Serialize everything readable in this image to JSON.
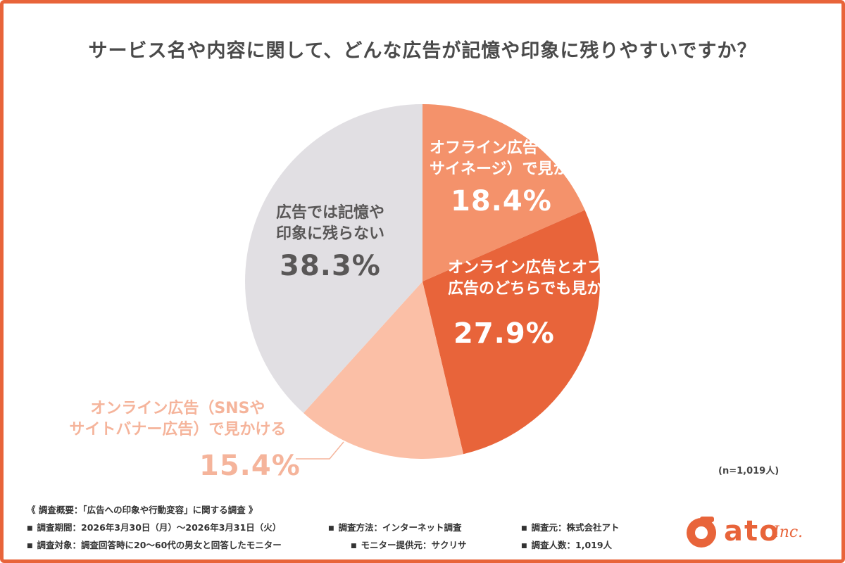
{
  "chart_data": {
    "type": "pie",
    "title": "サービス名や内容に関して、どんな広告が記憶や印象に残りやすいですか？",
    "sample_size": "(n=1,019人)",
    "slices": [
      {
        "lines": [
          "オフライン広告（チラシや",
          "サイネージ）で見かける"
        ],
        "value": 18.4,
        "display": "18.4%",
        "color": "#f4926b"
      },
      {
        "lines": [
          "オンライン広告とオフライン",
          "広告のどちらでも見かける"
        ],
        "value": 27.9,
        "display": "27.9%",
        "color": "#e8643a"
      },
      {
        "lines": [
          "オンライン広告（SNSや",
          "サイトバナー広告）で見かける"
        ],
        "value": 15.4,
        "display": "15.4%",
        "color": "#fbbfa6"
      },
      {
        "lines": [
          "広告では記憶や",
          "印象に残らない"
        ],
        "value": 38.3,
        "display": "38.3%",
        "color": "#e1dfe3"
      }
    ],
    "start_angle_deg": 0,
    "direction": "clockwise"
  },
  "survey": {
    "header": "《 調査概要：「広告への印象や行動変容」に関する調査 》",
    "period": "調査期間：2026年3月30日（月）〜2026年3月31日（火）",
    "method": "調査方法：インターネット調査",
    "source": "調査元：株式会社アト",
    "target": "調査対象：調査回答時に20〜60代の男女と回答したモニター",
    "provider": "モニター提供元：サクリサ",
    "count": "調査人数：1,019人"
  },
  "logo": {
    "text": "ato",
    "suffix": "Inc."
  },
  "icons": {
    "logo_mark": "ato-logo-icon",
    "bullet": "square-bullet-icon"
  }
}
